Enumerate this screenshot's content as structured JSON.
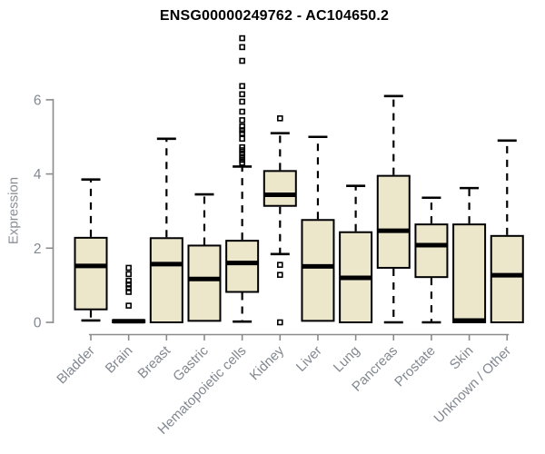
{
  "chart_data": {
    "type": "boxplot",
    "title": "ENSG00000249762 - AC104650.2",
    "ylabel": "Expression",
    "xlabel": "",
    "y_ticks": [
      0,
      2,
      4,
      6
    ],
    "ylim": [
      0,
      7.9
    ],
    "grid": false,
    "legend": "none",
    "categories": [
      "Bladder",
      "Brain",
      "Breast",
      "Gastric",
      "Hematopoietic cells",
      "Kidney",
      "Liver",
      "Lung",
      "Pancreas",
      "Prostate",
      "Skin",
      "Unknown / Other"
    ],
    "boxes": [
      {
        "category": "Bladder",
        "whisker_low": 0.05,
        "q1": 0.35,
        "median": 1.52,
        "q3": 2.28,
        "whisker_high": 3.85,
        "outliers": []
      },
      {
        "category": "Brain",
        "whisker_low": 0.0,
        "q1": 0.0,
        "median": 0.03,
        "q3": 0.06,
        "whisker_high": 0.08,
        "outliers": [
          0.45,
          0.82,
          0.92,
          1.02,
          1.12,
          1.3,
          1.47
        ]
      },
      {
        "category": "Breast",
        "whisker_low": 0.0,
        "q1": 0.0,
        "median": 1.57,
        "q3": 2.27,
        "whisker_high": 4.95,
        "outliers": []
      },
      {
        "category": "Gastric",
        "whisker_low": 0.04,
        "q1": 0.04,
        "median": 1.17,
        "q3": 2.07,
        "whisker_high": 3.45,
        "outliers": []
      },
      {
        "category": "Hematopoietic cells",
        "whisker_low": 0.02,
        "q1": 0.82,
        "median": 1.6,
        "q3": 2.2,
        "whisker_high": 4.2,
        "outliers": [
          4.3,
          4.38,
          4.46,
          4.55,
          4.64,
          4.72,
          4.95,
          5.1,
          5.18,
          5.28,
          5.45,
          5.68,
          5.95,
          6.15,
          6.37,
          7.05,
          7.42,
          7.66
        ]
      },
      {
        "category": "Kidney",
        "whisker_low": 1.84,
        "q1": 3.14,
        "median": 3.44,
        "q3": 4.08,
        "whisker_high": 5.1,
        "outliers": [
          0.0,
          1.28,
          1.55,
          5.5
        ]
      },
      {
        "category": "Liver",
        "whisker_low": 0.04,
        "q1": 0.04,
        "median": 1.51,
        "q3": 2.76,
        "whisker_high": 5.0,
        "outliers": []
      },
      {
        "category": "Lung",
        "whisker_low": 0.0,
        "q1": 0.0,
        "median": 1.2,
        "q3": 2.43,
        "whisker_high": 3.68,
        "outliers": []
      },
      {
        "category": "Pancreas",
        "whisker_low": 0.0,
        "q1": 1.47,
        "median": 2.47,
        "q3": 3.95,
        "whisker_high": 6.1,
        "outliers": []
      },
      {
        "category": "Prostate",
        "whisker_low": 0.0,
        "q1": 1.22,
        "median": 2.08,
        "q3": 2.64,
        "whisker_high": 3.36,
        "outliers": []
      },
      {
        "category": "Skin",
        "whisker_low": 0.0,
        "q1": 0.0,
        "median": 0.05,
        "q3": 2.64,
        "whisker_high": 3.62,
        "outliers": []
      },
      {
        "category": "Unknown / Other",
        "whisker_low": 0.0,
        "q1": 0.0,
        "median": 1.27,
        "q3": 2.33,
        "whisker_high": 4.9,
        "outliers": []
      }
    ],
    "style": {
      "box_fill": "#ECE7CB",
      "box_border": "#000000",
      "median_color": "#000000",
      "whisker_color": "#000000",
      "axis_color": "#8B8B8B",
      "tick_label_color": "#828890",
      "title_color": "#000000"
    }
  }
}
